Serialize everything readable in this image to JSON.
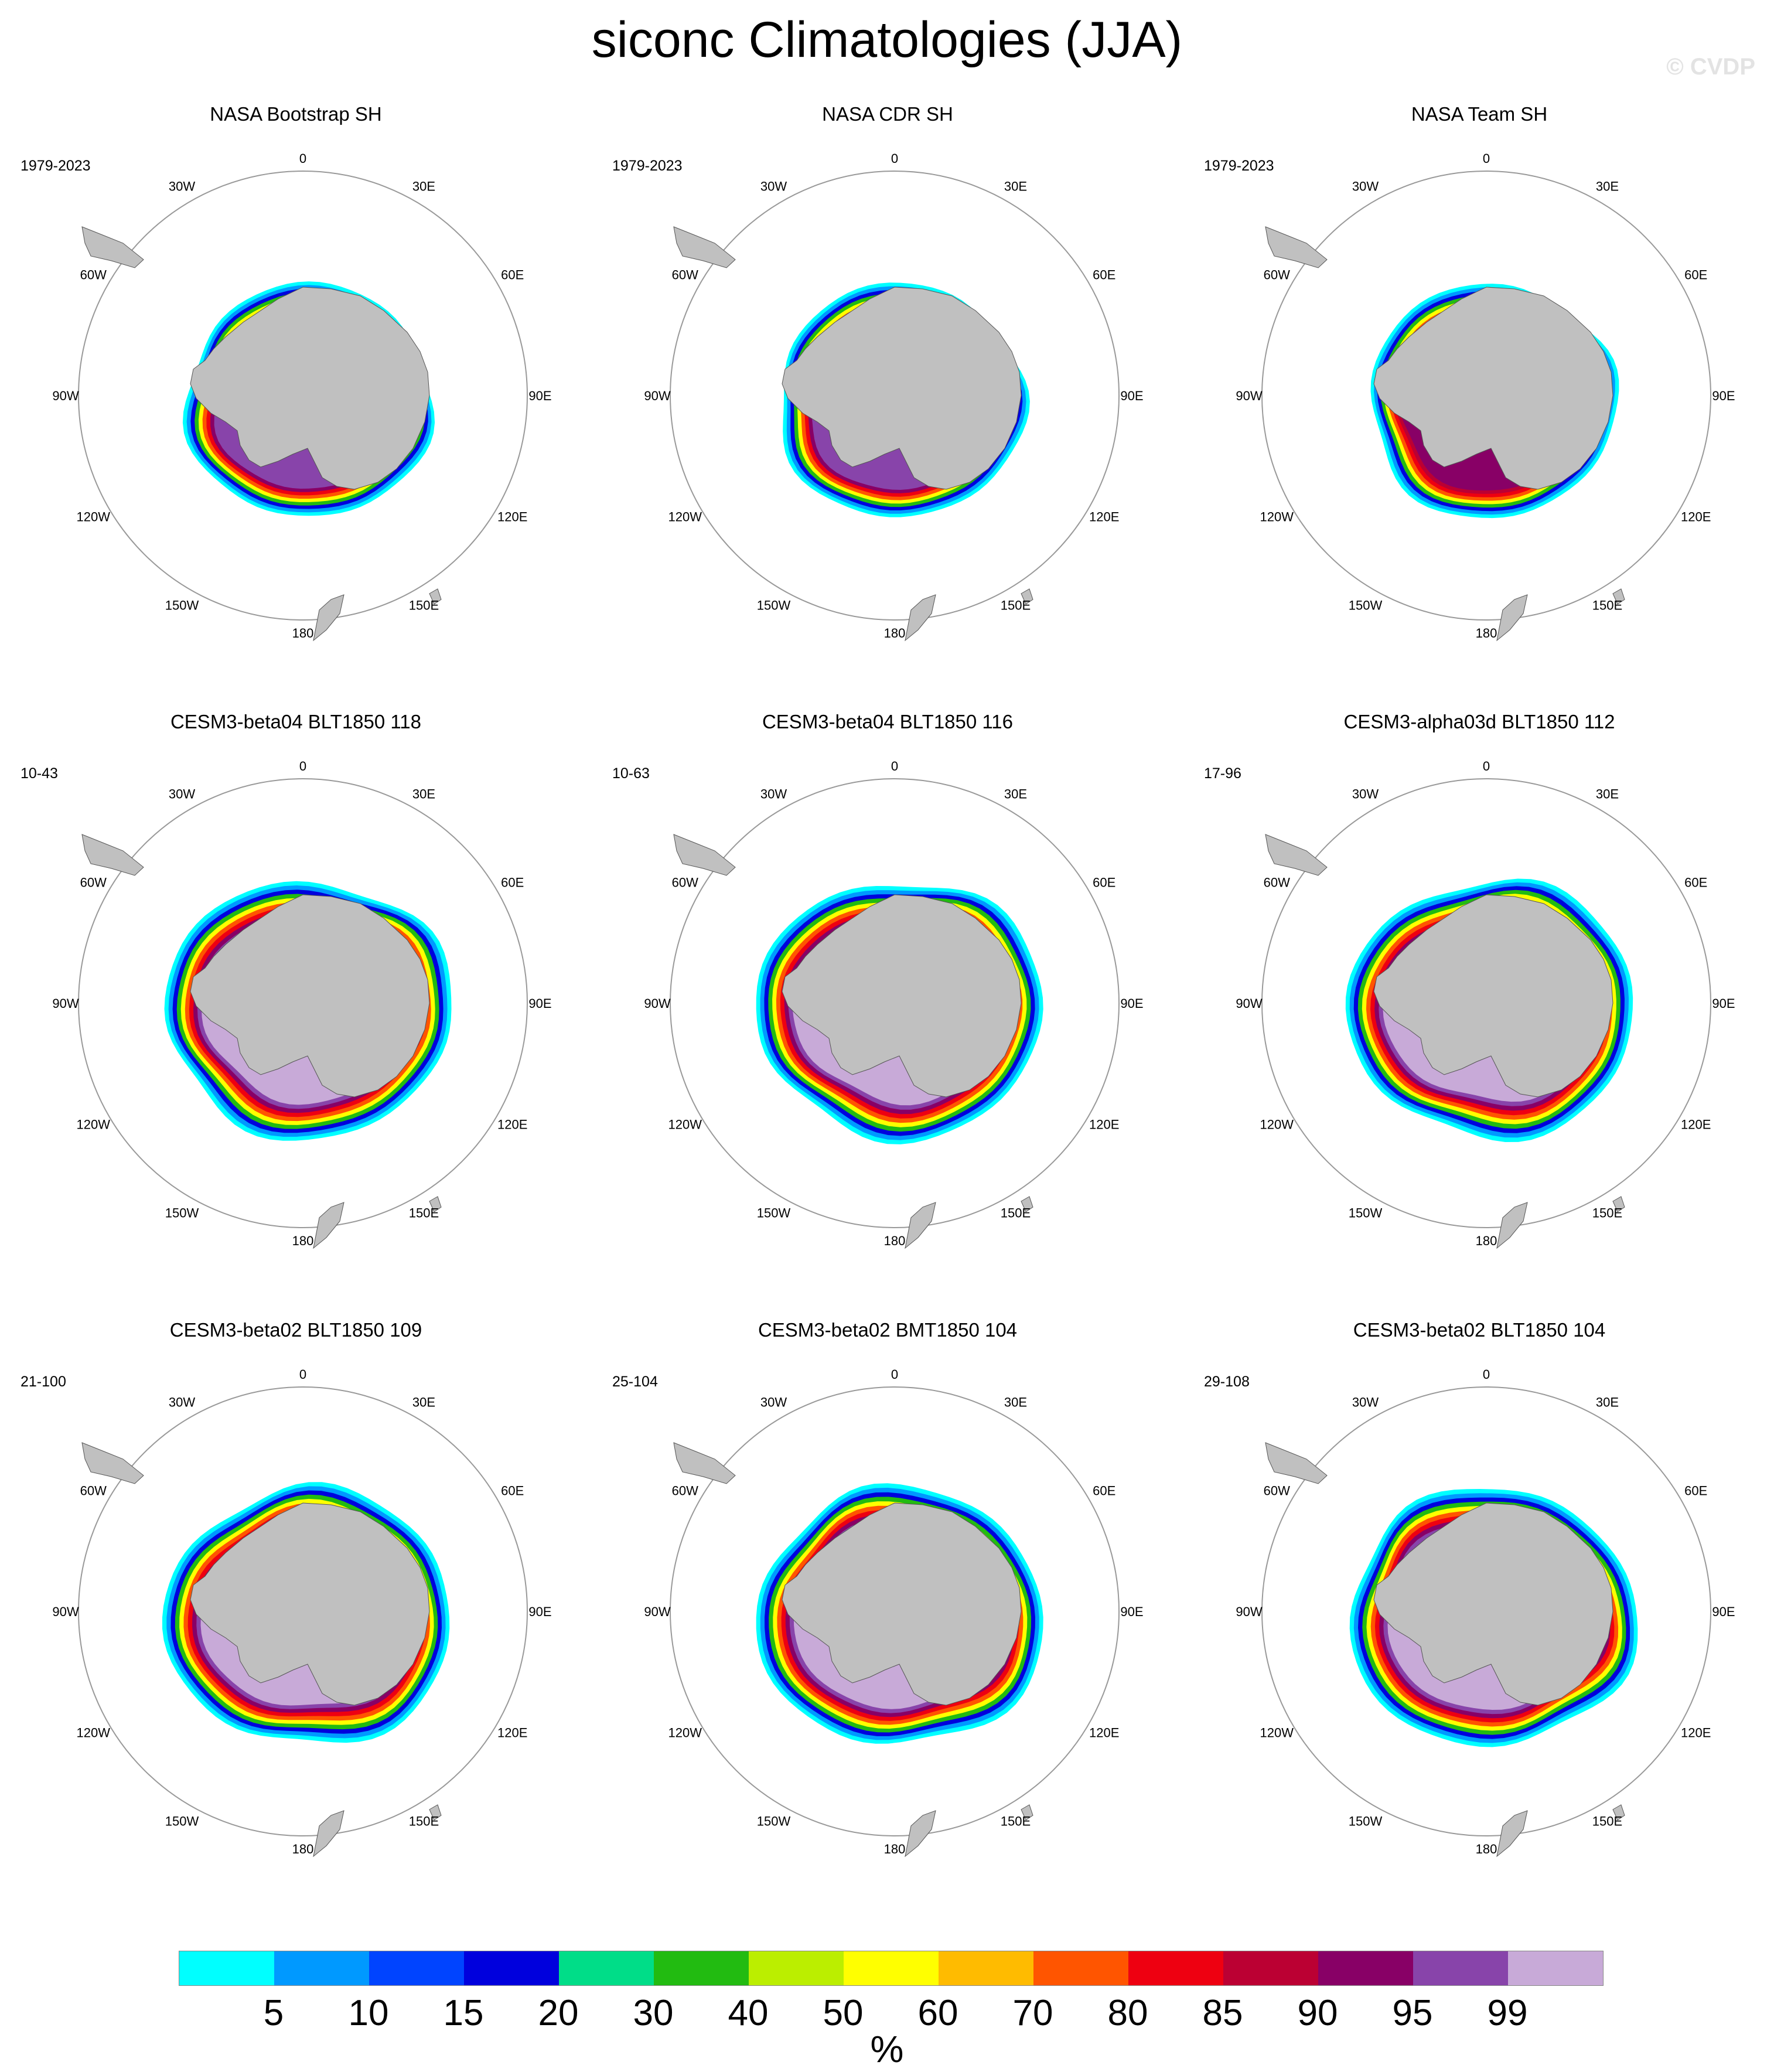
{
  "figure": {
    "title": "siconc Climatologies (JJA)",
    "watermark": "© CVDP"
  },
  "longitude_labels": [
    "0",
    "30E",
    "60E",
    "90E",
    "120E",
    "150E",
    "180",
    "150W",
    "120W",
    "90W",
    "60W",
    "30W"
  ],
  "panels": [
    {
      "title": "NASA Bootstrap SH",
      "period": "1979-2023"
    },
    {
      "title": "NASA CDR SH",
      "period": "1979-2023"
    },
    {
      "title": "NASA Team SH",
      "period": "1979-2023"
    },
    {
      "title": "CESM3-beta04 BLT1850 118",
      "period": "10-43"
    },
    {
      "title": "CESM3-beta04 BLT1850 116",
      "period": "10-63"
    },
    {
      "title": "CESM3-alpha03d BLT1850 112",
      "period": "17-96"
    },
    {
      "title": "CESM3-beta02 BLT1850 109",
      "period": "21-100"
    },
    {
      "title": "CESM3-beta02 BMT1850 104",
      "period": "25-104"
    },
    {
      "title": "CESM3-beta02 BLT1850 104",
      "period": "29-108"
    }
  ],
  "colorbar": {
    "colors": [
      "#00ffff",
      "#0099ff",
      "#0044ff",
      "#0000dd",
      "#00dd88",
      "#22bb11",
      "#bbee00",
      "#ffff00",
      "#ffbb00",
      "#ff5500",
      "#ee0011",
      "#bb0033",
      "#880066",
      "#8844aa",
      "#c8aad8"
    ],
    "tick_labels": [
      "5",
      "10",
      "15",
      "20",
      "30",
      "40",
      "50",
      "60",
      "70",
      "80",
      "85",
      "90",
      "95",
      "99"
    ],
    "units": "%"
  }
}
